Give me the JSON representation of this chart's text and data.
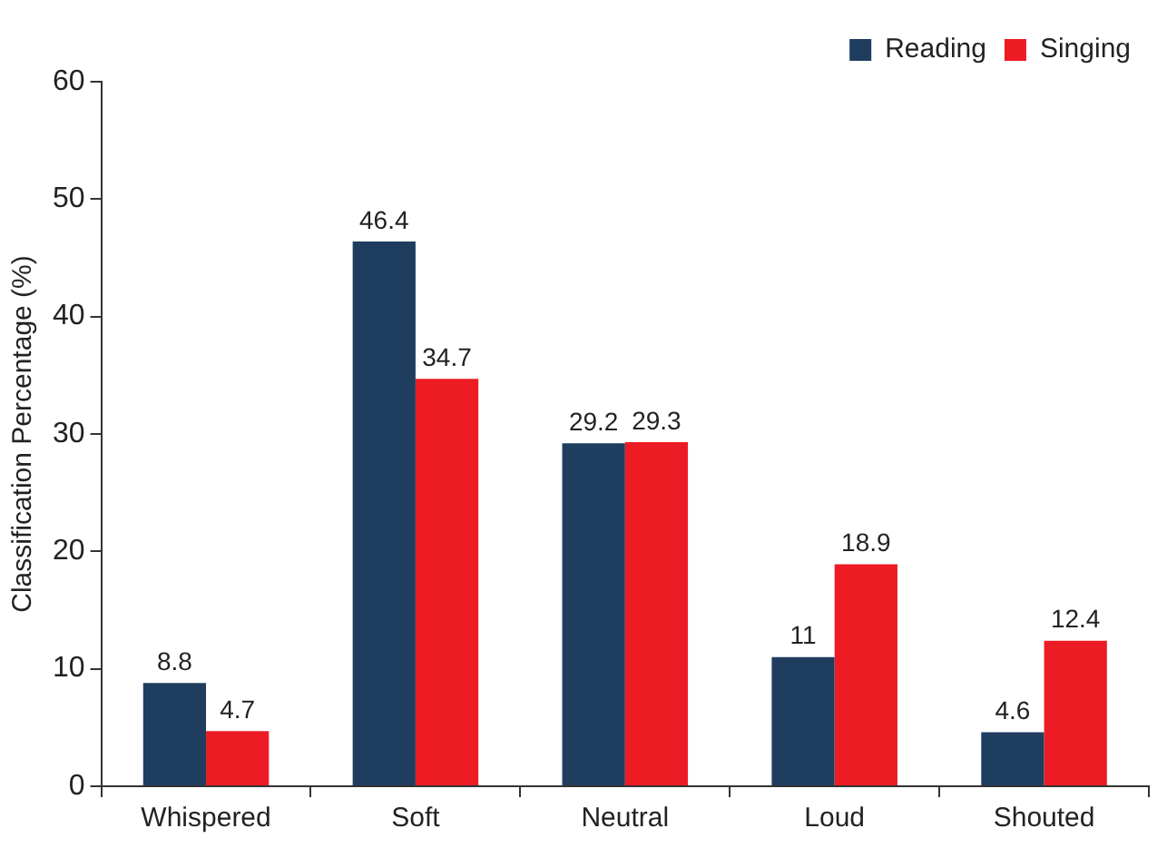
{
  "chart_data": {
    "type": "bar",
    "ylabel": "Classification Percentage (%)",
    "categories": [
      "Whispered",
      "Soft",
      "Neutral",
      "Loud",
      "Shouted"
    ],
    "series": [
      {
        "name": "Reading",
        "color": "#1f3d5f",
        "values": [
          8.8,
          46.4,
          29.2,
          11,
          4.6
        ]
      },
      {
        "name": "Singing",
        "color": "#ed1c24",
        "values": [
          4.7,
          34.7,
          29.3,
          18.9,
          12.4
        ]
      }
    ],
    "ylim": [
      0,
      60
    ],
    "yticks": [
      0,
      10,
      20,
      30,
      40,
      50,
      60
    ],
    "legend": "top right",
    "data_labels": true
  }
}
